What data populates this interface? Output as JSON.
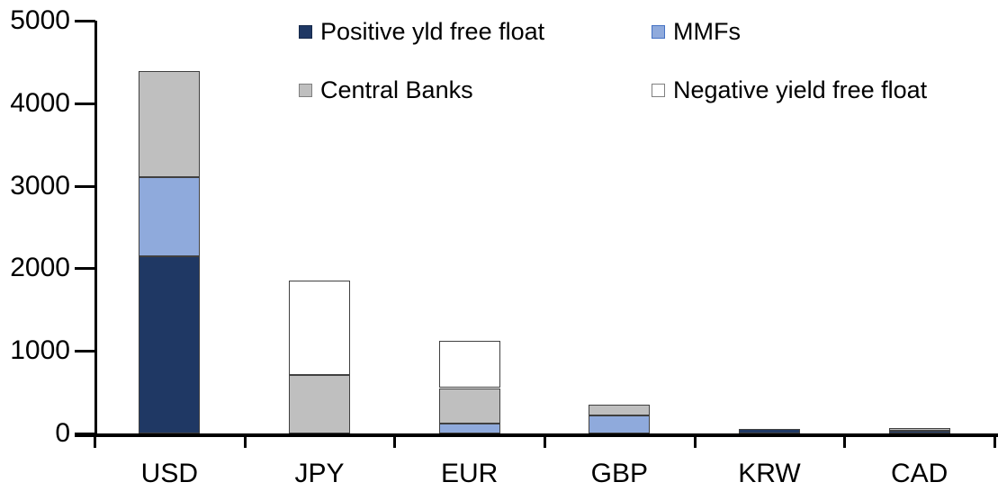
{
  "chart_data": {
    "type": "bar",
    "stacked": true,
    "title": "",
    "xlabel": "",
    "ylabel": "",
    "categories": [
      "USD",
      "JPY",
      "EUR",
      "GBP",
      "KRW",
      "CAD"
    ],
    "series": [
      {
        "name": "Positive yld free float",
        "color": "#1F3864",
        "marker_border": "#16294A",
        "values": [
          2150,
          0,
          0,
          0,
          50,
          30
        ]
      },
      {
        "name": "MMFs",
        "color": "#8FAADC",
        "marker_border": "#4472C4",
        "values": [
          950,
          0,
          120,
          220,
          0,
          0
        ]
      },
      {
        "name": "Central Banks",
        "color": "#BFBFBF",
        "marker_border": "#808080",
        "values": [
          1290,
          710,
          430,
          130,
          0,
          40
        ]
      },
      {
        "name": "Negative yield free float",
        "color": "#FFFFFF",
        "marker_border": "#808080",
        "values": [
          0,
          1140,
          570,
          0,
          0,
          0
        ]
      }
    ],
    "ylim": [
      0,
      5000
    ],
    "y_ticks": [
      0,
      1000,
      2000,
      3000,
      4000,
      5000
    ],
    "grid": false,
    "legend_position": "top-inside",
    "segment_border_color": "#404040",
    "axis_color": "#000000"
  }
}
